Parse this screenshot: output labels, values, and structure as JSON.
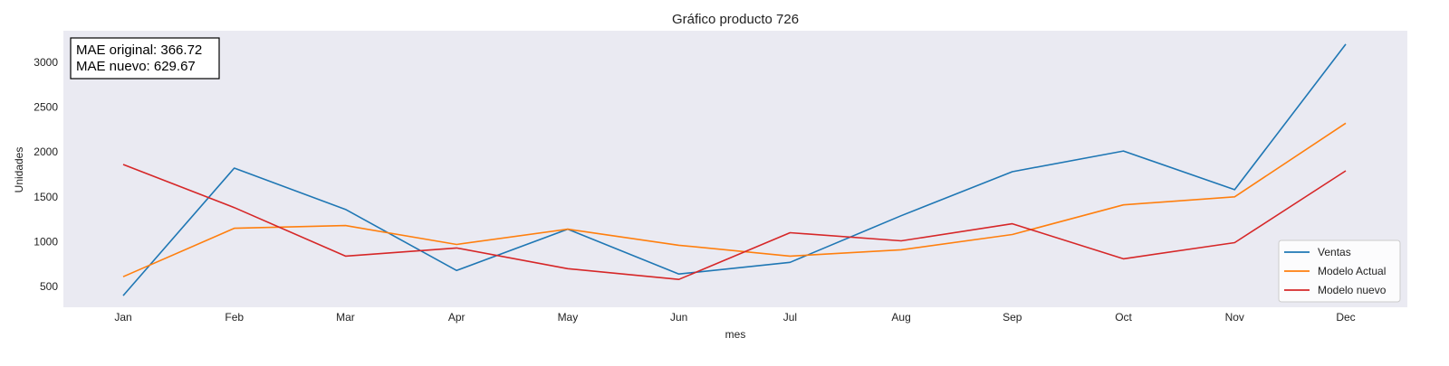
{
  "chart_data": {
    "type": "line",
    "title": "Gráfico producto 726",
    "xlabel": "mes",
    "ylabel": "Unidades",
    "categories": [
      "Jan",
      "Feb",
      "Mar",
      "Apr",
      "May",
      "Jun",
      "Jul",
      "Aug",
      "Sep",
      "Oct",
      "Nov",
      "Dec"
    ],
    "yticks": [
      500,
      1000,
      1500,
      2000,
      2500,
      3000
    ],
    "ylim": [
      270,
      3350
    ],
    "grid": false,
    "legend_position": "lower-right",
    "series": [
      {
        "name": "Ventas",
        "color": "#1f77b4",
        "values": [
          400,
          1820,
          1360,
          680,
          1140,
          640,
          770,
          1290,
          1780,
          2010,
          1580,
          3200
        ]
      },
      {
        "name": "Modelo Actual",
        "color": "#ff7f0e",
        "values": [
          610,
          1150,
          1180,
          970,
          1140,
          960,
          840,
          910,
          1080,
          1410,
          1500,
          2320
        ]
      },
      {
        "name": "Modelo nuevo",
        "color": "#d62728",
        "values": [
          1860,
          1380,
          840,
          930,
          700,
          580,
          1100,
          1010,
          1200,
          810,
          990,
          1790
        ]
      }
    ],
    "annotation": {
      "lines": [
        "MAE original: 366.72",
        "MAE nuevo: 629.67"
      ]
    },
    "colors": {
      "plot_background": "#eaeaf2"
    }
  }
}
